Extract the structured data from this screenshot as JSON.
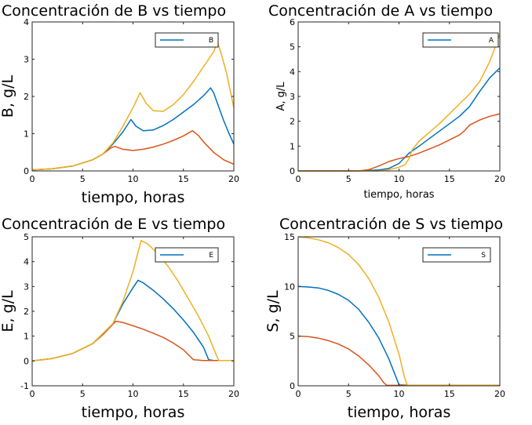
{
  "chart_data": [
    {
      "type": "line",
      "title": "Concentración de B vs tiempo",
      "xlabel": "tiempo, horas",
      "ylabel": "B, g/L",
      "xlim": [
        0,
        20
      ],
      "ylim": [
        0,
        4
      ],
      "xticks": [
        0,
        5,
        10,
        15,
        20
      ],
      "yticks": [
        0,
        1,
        2,
        3,
        4
      ],
      "legend": {
        "label": "B",
        "placement": "top-right"
      },
      "series": [
        {
          "color": "#0072BD",
          "points": [
            [
              0,
              0.03
            ],
            [
              2,
              0.06
            ],
            [
              4,
              0.13
            ],
            [
              6,
              0.3
            ],
            [
              7,
              0.45
            ],
            [
              8,
              0.72
            ],
            [
              9,
              1.05
            ],
            [
              9.8,
              1.38
            ],
            [
              10.3,
              1.2
            ],
            [
              11,
              1.08
            ],
            [
              12,
              1.1
            ],
            [
              13,
              1.22
            ],
            [
              14,
              1.38
            ],
            [
              15,
              1.58
            ],
            [
              16,
              1.78
            ],
            [
              17,
              2.02
            ],
            [
              17.7,
              2.23
            ],
            [
              18,
              2.1
            ],
            [
              18.5,
              1.72
            ],
            [
              19,
              1.35
            ],
            [
              19.5,
              1.02
            ],
            [
              20,
              0.72
            ]
          ]
        },
        {
          "color": "#D95319",
          "points": [
            [
              0,
              0.03
            ],
            [
              2,
              0.06
            ],
            [
              4,
              0.13
            ],
            [
              6,
              0.3
            ],
            [
              7,
              0.45
            ],
            [
              7.8,
              0.62
            ],
            [
              8.2,
              0.66
            ],
            [
              9,
              0.58
            ],
            [
              10,
              0.55
            ],
            [
              11,
              0.58
            ],
            [
              12,
              0.64
            ],
            [
              13,
              0.72
            ],
            [
              14,
              0.82
            ],
            [
              15,
              0.94
            ],
            [
              15.9,
              1.08
            ],
            [
              16.5,
              0.95
            ],
            [
              17,
              0.78
            ],
            [
              18,
              0.5
            ],
            [
              19,
              0.3
            ],
            [
              20,
              0.18
            ]
          ]
        },
        {
          "color": "#EDB120",
          "points": [
            [
              0,
              0.03
            ],
            [
              2,
              0.06
            ],
            [
              4,
              0.13
            ],
            [
              6,
              0.3
            ],
            [
              7,
              0.45
            ],
            [
              8,
              0.75
            ],
            [
              9,
              1.2
            ],
            [
              10,
              1.7
            ],
            [
              10.7,
              2.1
            ],
            [
              11.3,
              1.82
            ],
            [
              12,
              1.62
            ],
            [
              13,
              1.6
            ],
            [
              14,
              1.78
            ],
            [
              15,
              2.05
            ],
            [
              16,
              2.4
            ],
            [
              17,
              2.8
            ],
            [
              18,
              3.2
            ],
            [
              18.4,
              3.45
            ],
            [
              18.8,
              3.1
            ],
            [
              19.3,
              2.6
            ],
            [
              20,
              1.7
            ]
          ]
        }
      ]
    },
    {
      "type": "line",
      "title": "Concentración de A vs tiempo",
      "xlabel": "tiempo, horas",
      "ylabel": "A, g/L",
      "xlim": [
        0,
        20
      ],
      "ylim": [
        0,
        6
      ],
      "xticks": [
        0,
        5,
        10,
        15,
        20
      ],
      "yticks": [
        0,
        1,
        2,
        3,
        4,
        5,
        6
      ],
      "legend": {
        "label": "A",
        "placement": "top-right"
      },
      "series": [
        {
          "color": "#0072BD",
          "points": [
            [
              0,
              0
            ],
            [
              6,
              0
            ],
            [
              7,
              0.02
            ],
            [
              8,
              0.04
            ],
            [
              9,
              0.1
            ],
            [
              10,
              0.3
            ],
            [
              11,
              0.72
            ],
            [
              12,
              1.0
            ],
            [
              13,
              1.3
            ],
            [
              14,
              1.6
            ],
            [
              15,
              1.9
            ],
            [
              16,
              2.2
            ],
            [
              17,
              2.6
            ],
            [
              18,
              3.2
            ],
            [
              19,
              3.75
            ],
            [
              20,
              4.15
            ]
          ]
        },
        {
          "color": "#D95319",
          "points": [
            [
              0,
              0
            ],
            [
              6,
              0
            ],
            [
              7,
              0.05
            ],
            [
              8,
              0.2
            ],
            [
              9,
              0.38
            ],
            [
              10,
              0.5
            ],
            [
              11,
              0.58
            ],
            [
              12,
              0.72
            ],
            [
              13,
              0.88
            ],
            [
              14,
              1.05
            ],
            [
              15,
              1.25
            ],
            [
              16,
              1.45
            ],
            [
              16.5,
              1.62
            ],
            [
              17,
              1.85
            ],
            [
              18,
              2.05
            ],
            [
              19,
              2.2
            ],
            [
              20,
              2.3
            ]
          ]
        },
        {
          "color": "#EDB120",
          "points": [
            [
              0,
              0
            ],
            [
              6,
              0
            ],
            [
              8,
              0
            ],
            [
              9,
              0.05
            ],
            [
              10,
              0.15
            ],
            [
              10.6,
              0.25
            ],
            [
              11,
              0.5
            ],
            [
              11.3,
              0.85
            ],
            [
              12,
              1.2
            ],
            [
              13,
              1.55
            ],
            [
              14,
              1.9
            ],
            [
              15,
              2.3
            ],
            [
              16,
              2.7
            ],
            [
              17,
              3.1
            ],
            [
              18,
              3.6
            ],
            [
              19,
              4.4
            ],
            [
              20,
              5.5
            ]
          ]
        }
      ]
    },
    {
      "type": "line",
      "title": "Concentración de E vs tiempo",
      "xlabel": "tiempo, horas",
      "ylabel": "E, g/L",
      "xlim": [
        0,
        20
      ],
      "ylim": [
        -1,
        5
      ],
      "xticks": [
        0,
        5,
        10,
        15,
        20
      ],
      "yticks": [
        -1,
        0,
        1,
        2,
        3,
        4,
        5
      ],
      "legend": {
        "label": "E",
        "placement": "top-right"
      },
      "series": [
        {
          "color": "#0072BD",
          "points": [
            [
              0,
              0
            ],
            [
              2,
              0.1
            ],
            [
              4,
              0.3
            ],
            [
              6,
              0.7
            ],
            [
              8,
              1.5
            ],
            [
              9,
              2.3
            ],
            [
              10,
              2.95
            ],
            [
              10.5,
              3.25
            ],
            [
              11,
              3.15
            ],
            [
              12,
              2.85
            ],
            [
              13,
              2.5
            ],
            [
              14,
              2.1
            ],
            [
              15,
              1.65
            ],
            [
              16,
              1.15
            ],
            [
              17,
              0.55
            ],
            [
              17.5,
              0.05
            ],
            [
              18,
              0.02
            ],
            [
              20,
              0.02
            ]
          ]
        },
        {
          "color": "#D95319",
          "points": [
            [
              0,
              0
            ],
            [
              2,
              0.1
            ],
            [
              4,
              0.3
            ],
            [
              6,
              0.7
            ],
            [
              7,
              1.05
            ],
            [
              8.3,
              1.6
            ],
            [
              9,
              1.55
            ],
            [
              10,
              1.42
            ],
            [
              11,
              1.28
            ],
            [
              12,
              1.12
            ],
            [
              13,
              0.95
            ],
            [
              14,
              0.72
            ],
            [
              15,
              0.45
            ],
            [
              16,
              0.05
            ],
            [
              17,
              0.02
            ],
            [
              20,
              0.02
            ]
          ]
        },
        {
          "color": "#EDB120",
          "points": [
            [
              0,
              0
            ],
            [
              2,
              0.1
            ],
            [
              4,
              0.3
            ],
            [
              6,
              0.7
            ],
            [
              8,
              1.5
            ],
            [
              9,
              2.4
            ],
            [
              10,
              3.6
            ],
            [
              10.8,
              4.85
            ],
            [
              11.5,
              4.7
            ],
            [
              12.5,
              4.3
            ],
            [
              13.5,
              3.8
            ],
            [
              14.5,
              3.2
            ],
            [
              15.5,
              2.5
            ],
            [
              16.5,
              1.8
            ],
            [
              17.5,
              1.0
            ],
            [
              18.2,
              0.3
            ],
            [
              18.5,
              0.02
            ],
            [
              20,
              0.02
            ]
          ]
        }
      ]
    },
    {
      "type": "line",
      "title": "Concentración de S vs tiempo",
      "xlabel": "tiempo, horas",
      "ylabel": "S, g/L",
      "xlim": [
        0,
        20
      ],
      "ylim": [
        0,
        15
      ],
      "xticks": [
        0,
        5,
        10,
        15,
        20
      ],
      "yticks": [
        0,
        5,
        10,
        15
      ],
      "legend": {
        "label": "S",
        "placement": "top-right"
      },
      "series": [
        {
          "color": "#0072BD",
          "points": [
            [
              0,
              10
            ],
            [
              1,
              9.95
            ],
            [
              2,
              9.85
            ],
            [
              3,
              9.6
            ],
            [
              4,
              9.2
            ],
            [
              5,
              8.6
            ],
            [
              6,
              7.7
            ],
            [
              7,
              6.4
            ],
            [
              8,
              4.8
            ],
            [
              9,
              2.7
            ],
            [
              9.5,
              1.4
            ],
            [
              10,
              0.1
            ],
            [
              11,
              0.05
            ],
            [
              20,
              0.05
            ]
          ]
        },
        {
          "color": "#D95319",
          "points": [
            [
              0,
              5
            ],
            [
              1,
              4.95
            ],
            [
              2,
              4.8
            ],
            [
              3,
              4.55
            ],
            [
              4,
              4.2
            ],
            [
              5,
              3.7
            ],
            [
              6,
              3.0
            ],
            [
              7,
              2.1
            ],
            [
              8,
              1.0
            ],
            [
              8.5,
              0.3
            ],
            [
              8.8,
              0.05
            ],
            [
              20,
              0.05
            ]
          ]
        },
        {
          "color": "#EDB120",
          "points": [
            [
              0,
              15
            ],
            [
              1,
              14.9
            ],
            [
              2,
              14.7
            ],
            [
              3,
              14.4
            ],
            [
              4,
              13.9
            ],
            [
              5,
              13.2
            ],
            [
              6,
              12.2
            ],
            [
              7,
              10.8
            ],
            [
              8,
              8.9
            ],
            [
              9,
              6.4
            ],
            [
              10,
              3.2
            ],
            [
              10.5,
              1.0
            ],
            [
              10.8,
              0.1
            ],
            [
              11,
              0.05
            ],
            [
              20,
              0.05
            ]
          ]
        }
      ]
    }
  ]
}
